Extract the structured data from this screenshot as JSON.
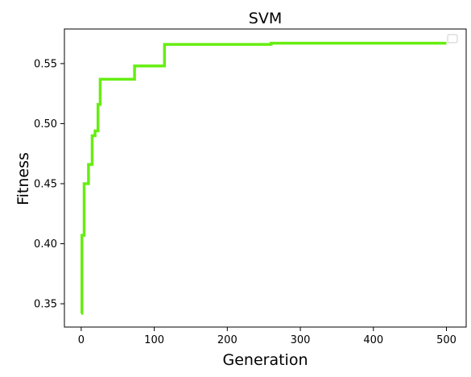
{
  "chart_data": {
    "type": "line",
    "title": "SVM",
    "xlabel": "Generation",
    "ylabel": "Fitness",
    "xlim": [
      -23,
      527
    ],
    "ylim": [
      0.3306,
      0.5788
    ],
    "xticks": [
      0,
      100,
      200,
      300,
      400,
      500
    ],
    "yticks": [
      0.35,
      0.4,
      0.45,
      0.5,
      0.55
    ],
    "ytick_labels": [
      "0.35",
      "0.40",
      "0.45",
      "0.50",
      "0.55"
    ],
    "grid": false,
    "legend": "top-right (empty)",
    "line_color": "#66ee11",
    "series": [
      {
        "drawstyle": "steps-post",
        "x": [
          0,
          1,
          4,
          10,
          15,
          19,
          23,
          26,
          73,
          114,
          260,
          500
        ],
        "y": [
          0.342,
          0.407,
          0.45,
          0.466,
          0.49,
          0.494,
          0.516,
          0.537,
          0.548,
          0.566,
          0.567,
          0.567
        ]
      }
    ]
  }
}
